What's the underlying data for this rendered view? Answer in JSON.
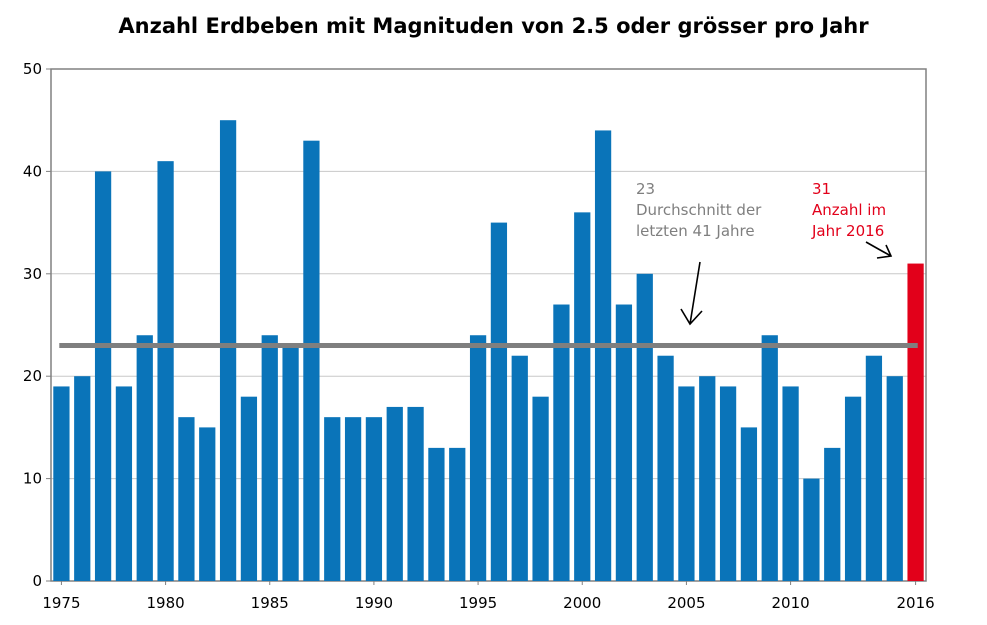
{
  "chart_data": {
    "type": "bar",
    "title": "Anzahl Erdbeben mit Magnituden von 2.5 oder grösser pro Jahr",
    "xlabel": "",
    "ylabel": "",
    "ylim": [
      0,
      50
    ],
    "yticks": [
      0,
      10,
      20,
      30,
      40,
      50
    ],
    "grid": true,
    "years": [
      1975,
      1976,
      1977,
      1978,
      1979,
      1980,
      1981,
      1982,
      1983,
      1984,
      1985,
      1986,
      1987,
      1988,
      1989,
      1990,
      1991,
      1992,
      1993,
      1994,
      1995,
      1996,
      1997,
      1998,
      1999,
      2000,
      2001,
      2002,
      2003,
      2004,
      2005,
      2006,
      2007,
      2008,
      2009,
      2010,
      2011,
      2012,
      2013,
      2014,
      2015,
      2016
    ],
    "values": [
      19,
      20,
      40,
      19,
      24,
      41,
      16,
      15,
      45,
      18,
      24,
      23,
      43,
      16,
      16,
      16,
      17,
      17,
      13,
      13,
      24,
      35,
      22,
      18,
      27,
      36,
      44,
      27,
      30,
      22,
      19,
      20,
      19,
      15,
      24,
      19,
      10,
      13,
      18,
      22,
      20,
      31
    ],
    "xtick_labels": [
      "1975",
      "1980",
      "1985",
      "1990",
      "1995",
      "2000",
      "2005",
      "2010",
      "2016"
    ],
    "xtick_years": [
      1975,
      1980,
      1985,
      1990,
      1995,
      2000,
      2005,
      2010,
      2016
    ],
    "highlight_year": 2016,
    "average": {
      "value": 23,
      "label_value": "23",
      "label_line1": "Durchschnitt der",
      "label_line2": "letzten 41 Jahre"
    },
    "highlight_note": {
      "label_value": "31",
      "label_line1": "Anzahl  im",
      "label_line2": "Jahr 2016"
    },
    "colors": {
      "bar": "#0A74B9",
      "highlight": "#E2001A",
      "average_line": "#7F7F7F",
      "grid": "#C8C8C8",
      "axis": "#808080",
      "average_text": "#7F7F7F",
      "highlight_text": "#E2001A"
    }
  }
}
